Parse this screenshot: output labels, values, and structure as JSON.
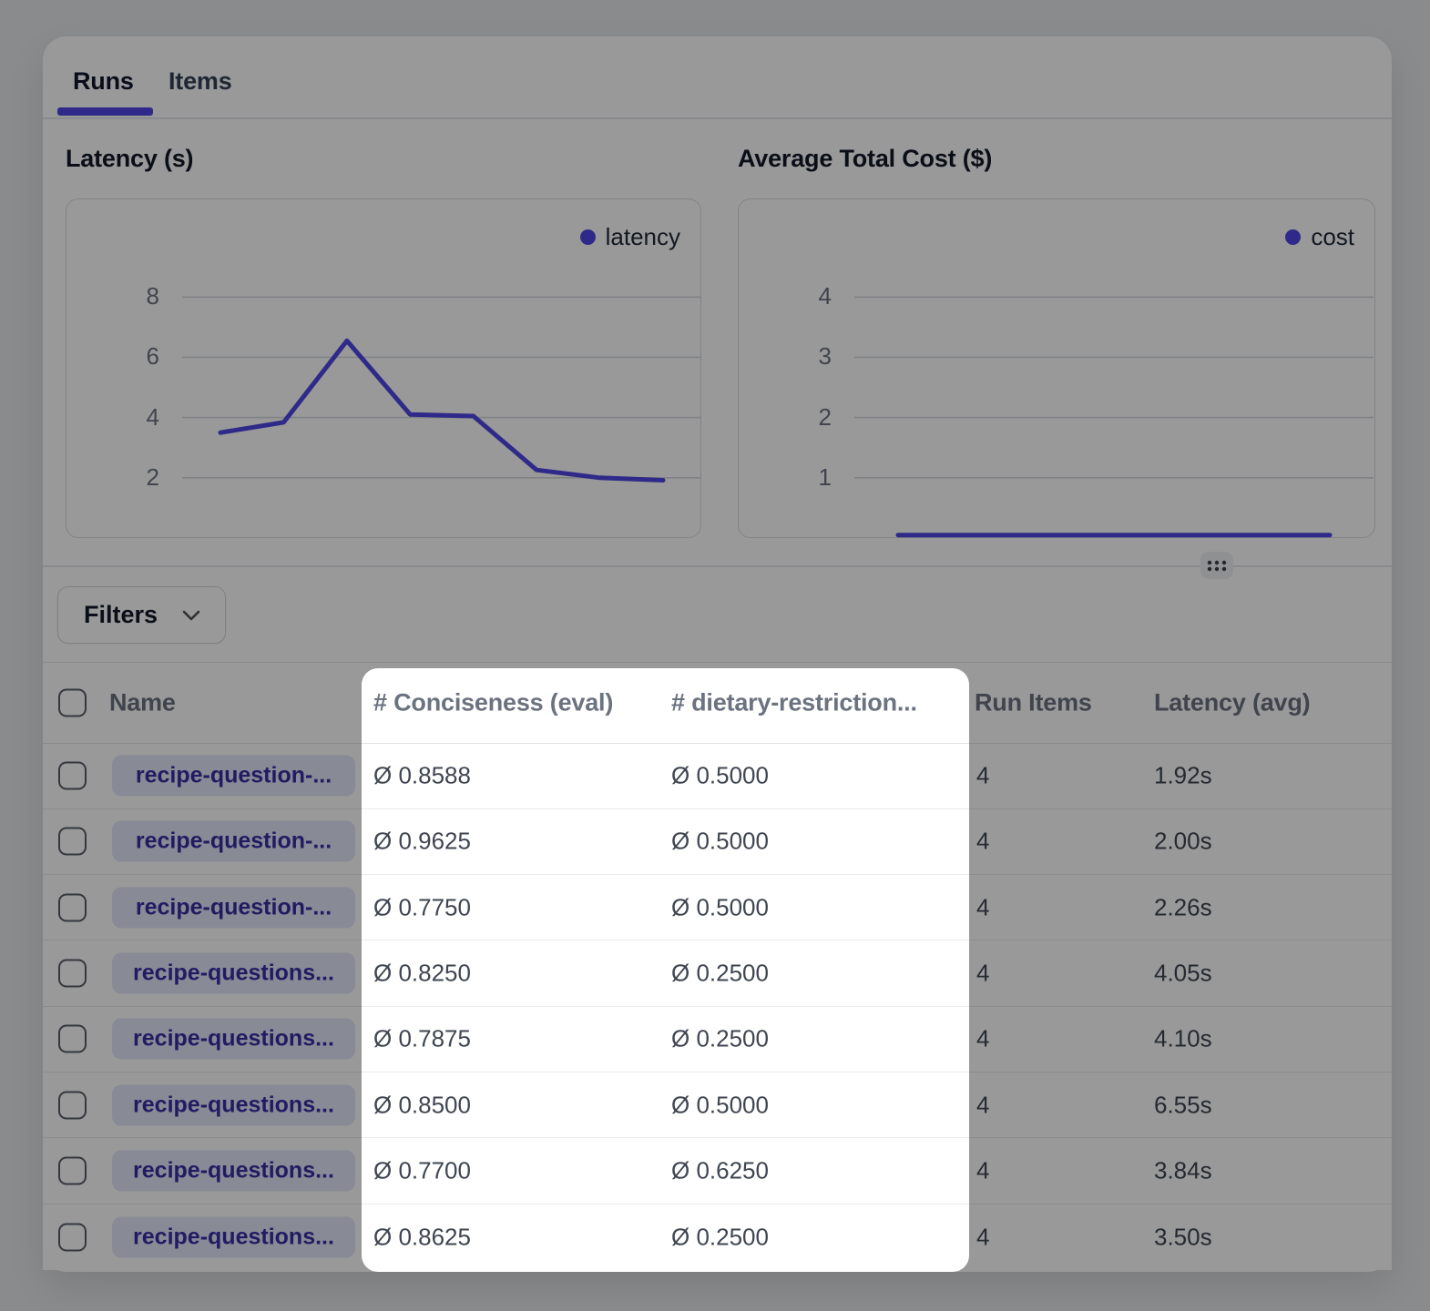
{
  "tabs": [
    {
      "label": "Runs",
      "active": true
    },
    {
      "label": "Items",
      "active": false
    }
  ],
  "chart_data": [
    {
      "type": "line",
      "title": "Latency (s)",
      "series": [
        {
          "name": "latency",
          "values": [
            3.5,
            3.84,
            6.55,
            4.1,
            4.05,
            2.26,
            2.0,
            1.92
          ]
        }
      ],
      "yticks": [
        2,
        4,
        6,
        8
      ],
      "ylim": [
        0,
        8.22
      ],
      "grid": true,
      "legend_position": "top-right",
      "color": "#4f46e5",
      "xpad": 42
    },
    {
      "type": "line",
      "title": "Average Total Cost ($)",
      "series": [
        {
          "name": "cost",
          "values": [
            0.05,
            0.05,
            0.05,
            0.05,
            0.05,
            0.05,
            0.05,
            0.05
          ]
        }
      ],
      "yticks": [
        1,
        2,
        3,
        4
      ],
      "ylim": [
        0,
        4.11
      ],
      "grid": true,
      "legend_position": "top-right",
      "color": "#4f46e5",
      "xpad": 48
    }
  ],
  "filters": {
    "label": "Filters"
  },
  "table": {
    "columns": [
      "Name",
      "# Conciseness (eval)",
      "# dietary-restriction...",
      "Run Items",
      "Latency (avg)"
    ],
    "rows": [
      {
        "name": "recipe-question-...",
        "conciseness": "Ø 0.8588",
        "dietary": "Ø 0.5000",
        "run_items": "4",
        "latency_avg": "1.92s"
      },
      {
        "name": "recipe-question-...",
        "conciseness": "Ø 0.9625",
        "dietary": "Ø 0.5000",
        "run_items": "4",
        "latency_avg": "2.00s"
      },
      {
        "name": "recipe-question-...",
        "conciseness": "Ø 0.7750",
        "dietary": "Ø 0.5000",
        "run_items": "4",
        "latency_avg": "2.26s"
      },
      {
        "name": "recipe-questions...",
        "conciseness": "Ø 0.8250",
        "dietary": "Ø 0.2500",
        "run_items": "4",
        "latency_avg": "4.05s"
      },
      {
        "name": "recipe-questions...",
        "conciseness": "Ø 0.7875",
        "dietary": "Ø 0.2500",
        "run_items": "4",
        "latency_avg": "4.10s"
      },
      {
        "name": "recipe-questions...",
        "conciseness": "Ø 0.8500",
        "dietary": "Ø 0.5000",
        "run_items": "4",
        "latency_avg": "6.55s"
      },
      {
        "name": "recipe-questions...",
        "conciseness": "Ø 0.7700",
        "dietary": "Ø 0.6250",
        "run_items": "4",
        "latency_avg": "3.84s"
      },
      {
        "name": "recipe-questions...",
        "conciseness": "Ø 0.8625",
        "dietary": "Ø 0.2500",
        "run_items": "4",
        "latency_avg": "3.50s"
      }
    ]
  },
  "colors": {
    "accent": "#4f46e5",
    "badge_bg": "#e3e7fb",
    "badge_text": "#3730a3",
    "dim_overlay": "rgba(0,0,0,0.40)"
  }
}
